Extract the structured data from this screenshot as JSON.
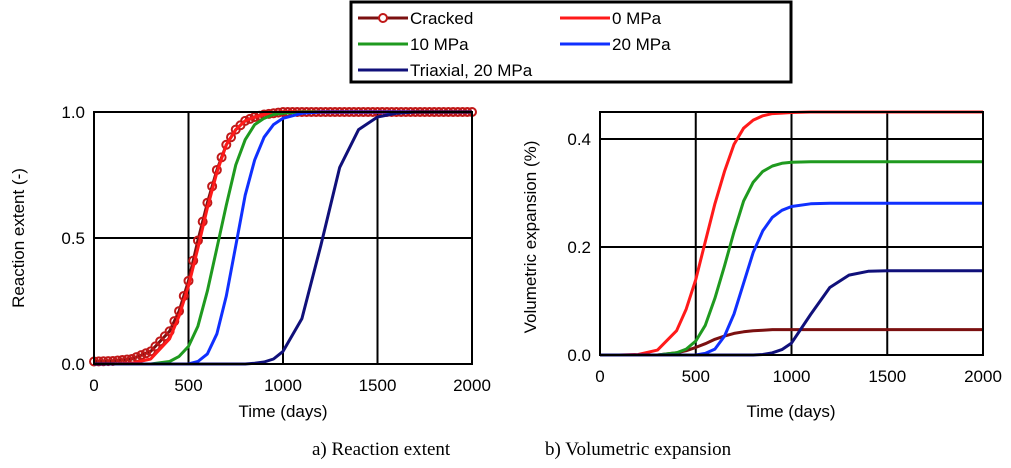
{
  "colors": {
    "Cracked": "#7b1010",
    "0 MPa": "#ff1a1a",
    "10 MPa": "#1f9a1f",
    "20 MPa": "#1030ff",
    "Triaxial, 20 MPa": "#10107a",
    "marker_edge": "#c01818"
  },
  "legend": {
    "placement": "top-center",
    "entries": [
      "Cracked",
      "0 MPa",
      "10 MPa",
      "20 MPa",
      "Triaxial, 20 MPa"
    ]
  },
  "captions": [
    "a) Reaction extent",
    "b) Volumetric expansion"
  ],
  "chart_data": [
    {
      "type": "line",
      "xlabel": "Time (days)",
      "ylabel": "Reaction extent (-)",
      "xlim": [
        0,
        2000
      ],
      "ylim": [
        0,
        1.0
      ],
      "xticks": [
        0,
        500,
        1000,
        1500,
        2000
      ],
      "yticks": [
        0,
        0.5,
        1.0
      ],
      "xtick_labels": [
        "0",
        "500",
        "1000",
        "1500",
        "2000"
      ],
      "ytick_labels": [
        "0.0",
        "0.5",
        "1.0"
      ],
      "grid": true,
      "x": [
        0,
        100,
        200,
        300,
        400,
        450,
        500,
        550,
        600,
        650,
        700,
        750,
        800,
        850,
        900,
        950,
        1000,
        1100,
        1200,
        1300,
        1400,
        1500,
        1600,
        1700,
        1800,
        1900,
        2000
      ],
      "series": [
        {
          "name": "Cracked",
          "markers": true,
          "values": [
            0.01,
            0.012,
            0.02,
            0.05,
            0.13,
            0.21,
            0.33,
            0.49,
            0.64,
            0.77,
            0.87,
            0.93,
            0.965,
            0.98,
            0.99,
            0.995,
            1.0,
            1.0,
            1.0,
            1.0,
            1.0,
            1.0,
            1.0,
            1.0,
            1.0,
            1.0,
            1.0
          ]
        },
        {
          "name": "0 MPa",
          "markers": false,
          "values": [
            0.0,
            0.0,
            0.003,
            0.02,
            0.1,
            0.19,
            0.31,
            0.46,
            0.62,
            0.76,
            0.87,
            0.93,
            0.965,
            0.98,
            0.99,
            0.995,
            1.0,
            1.0,
            1.0,
            1.0,
            1.0,
            1.0,
            1.0,
            1.0,
            1.0,
            1.0,
            1.0
          ]
        },
        {
          "name": "10 MPa",
          "markers": false,
          "values": [
            0.0,
            0.0,
            0.0,
            0.0,
            0.01,
            0.03,
            0.07,
            0.15,
            0.29,
            0.46,
            0.63,
            0.79,
            0.89,
            0.95,
            0.975,
            0.99,
            0.995,
            1.0,
            1.0,
            1.0,
            1.0,
            1.0,
            1.0,
            1.0,
            1.0,
            1.0,
            1.0
          ]
        },
        {
          "name": "20 MPa",
          "markers": false,
          "values": [
            0.0,
            0.0,
            0.0,
            0.0,
            0.0,
            0.0,
            0.0,
            0.01,
            0.04,
            0.12,
            0.27,
            0.47,
            0.67,
            0.81,
            0.9,
            0.95,
            0.975,
            0.995,
            1.0,
            1.0,
            1.0,
            1.0,
            1.0,
            1.0,
            1.0,
            1.0,
            1.0
          ]
        },
        {
          "name": "Triaxial, 20 MPa",
          "markers": false,
          "values": [
            0.0,
            0.0,
            0.0,
            0.0,
            0.0,
            0.0,
            0.0,
            0.0,
            0.0,
            0.0,
            0.0,
            0.0,
            0.0,
            0.003,
            0.008,
            0.02,
            0.05,
            0.18,
            0.47,
            0.78,
            0.93,
            0.98,
            0.995,
            1.0,
            1.0,
            1.0,
            1.0
          ]
        }
      ]
    },
    {
      "type": "line",
      "xlabel": "Time (days)",
      "ylabel": "Volumetric expansion (%)",
      "xlim": [
        0,
        2000
      ],
      "ylim": [
        0,
        0.45
      ],
      "xticks": [
        0,
        500,
        1000,
        1500,
        2000
      ],
      "yticks": [
        0,
        0.2,
        0.4
      ],
      "xtick_labels": [
        "0",
        "500",
        "1000",
        "1500",
        "2000"
      ],
      "ytick_labels": [
        "0.0",
        "0.2",
        "0.4"
      ],
      "grid": true,
      "x": [
        0,
        100,
        200,
        300,
        400,
        450,
        500,
        550,
        600,
        650,
        700,
        750,
        800,
        850,
        900,
        950,
        1000,
        1100,
        1200,
        1300,
        1400,
        1500,
        1600,
        1700,
        1800,
        1900,
        2000
      ],
      "series": [
        {
          "name": "Cracked",
          "markers": false,
          "values": [
            0.0,
            0.0,
            0.0,
            0.0,
            0.004,
            0.008,
            0.014,
            0.021,
            0.029,
            0.035,
            0.04,
            0.043,
            0.045,
            0.046,
            0.047,
            0.047,
            0.047,
            0.047,
            0.047,
            0.047,
            0.047,
            0.047,
            0.047,
            0.047,
            0.047,
            0.047,
            0.047
          ]
        },
        {
          "name": "0 MPa",
          "markers": false,
          "values": [
            0.0,
            0.0,
            0.001,
            0.009,
            0.045,
            0.085,
            0.14,
            0.21,
            0.28,
            0.34,
            0.39,
            0.42,
            0.435,
            0.443,
            0.447,
            0.448,
            0.449,
            0.45,
            0.45,
            0.45,
            0.45,
            0.45,
            0.45,
            0.45,
            0.45,
            0.45,
            0.45
          ]
        },
        {
          "name": "10 MPa",
          "markers": false,
          "values": [
            0.0,
            0.0,
            0.0,
            0.0,
            0.004,
            0.011,
            0.026,
            0.055,
            0.105,
            0.165,
            0.228,
            0.285,
            0.32,
            0.34,
            0.35,
            0.355,
            0.357,
            0.358,
            0.358,
            0.358,
            0.358,
            0.358,
            0.358,
            0.358,
            0.358,
            0.358,
            0.358
          ]
        },
        {
          "name": "20 MPa",
          "markers": false,
          "values": [
            0.0,
            0.0,
            0.0,
            0.0,
            0.0,
            0.0,
            0.0,
            0.003,
            0.011,
            0.035,
            0.076,
            0.133,
            0.19,
            0.23,
            0.255,
            0.268,
            0.275,
            0.28,
            0.281,
            0.281,
            0.281,
            0.281,
            0.281,
            0.281,
            0.281,
            0.281,
            0.281
          ]
        },
        {
          "name": "Triaxial, 20 MPa",
          "markers": false,
          "values": [
            0.0,
            0.0,
            0.0,
            0.0,
            0.0,
            0.0,
            0.0,
            0.0,
            0.0,
            0.0,
            0.0,
            0.0,
            0.0,
            0.001,
            0.004,
            0.01,
            0.022,
            0.075,
            0.125,
            0.148,
            0.155,
            0.156,
            0.156,
            0.156,
            0.156,
            0.156,
            0.156
          ]
        }
      ]
    }
  ]
}
